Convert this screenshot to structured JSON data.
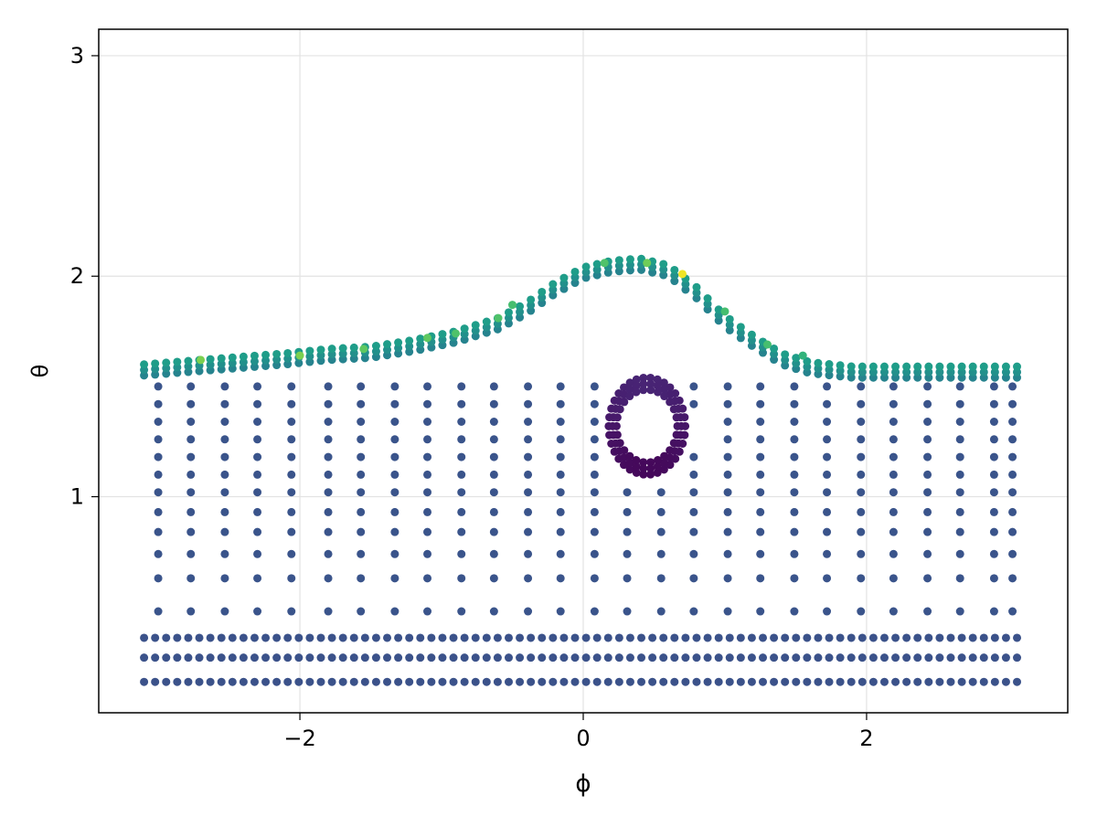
{
  "chart_data": {
    "type": "scatter",
    "title": "",
    "xlabel": "ϕ",
    "ylabel": "θ",
    "xlim": [
      -3.42,
      3.42
    ],
    "ylim": [
      0.02,
      3.12
    ],
    "xticks": [
      {
        "value": -2,
        "label": "−2"
      },
      {
        "value": 0,
        "label": "0"
      },
      {
        "value": 2,
        "label": "2"
      }
    ],
    "yticks": [
      {
        "value": 1,
        "label": "1"
      },
      {
        "value": 2,
        "label": "2"
      },
      {
        "value": 3,
        "label": "3"
      }
    ],
    "grid": true,
    "colormap": "viridis",
    "color_range": [
      0,
      1
    ],
    "sparse_columns_x": [
      -3.0,
      -2.77,
      -2.53,
      -2.3,
      -2.06,
      -1.8,
      -1.57,
      -1.33,
      -1.1,
      -0.86,
      -0.63,
      -0.39,
      -0.16,
      0.08,
      0.31,
      0.55,
      0.78,
      1.02,
      1.25,
      1.49,
      1.72,
      1.96,
      2.19,
      2.43,
      2.66,
      2.9,
      3.03
    ],
    "sparse_column_y": [
      0.48,
      0.63,
      0.74,
      0.84,
      0.93,
      1.02,
      1.1,
      1.18,
      1.26,
      1.34,
      1.42,
      1.5
    ],
    "sparse_column_color": 0.26,
    "dense_band_x": {
      "start": -3.1,
      "end": 3.1,
      "step": 0.078
    },
    "dense_band_rows": [
      {
        "y": 0.16,
        "color": 0.25
      },
      {
        "y": 0.27,
        "color": 0.25
      },
      {
        "y": 0.36,
        "color": 0.25
      }
    ],
    "surface_layers": [
      {
        "dy": 0.0,
        "color": 0.45
      },
      {
        "dy": 0.025,
        "color": 0.5
      },
      {
        "dy": 0.05,
        "color": 0.55
      }
    ],
    "surface_profile": {
      "x": [
        -3.1,
        -2.5,
        -2.1,
        -1.8,
        -1.5,
        -1.2,
        -0.9,
        -0.6,
        -0.4,
        -0.2,
        0.0,
        0.2,
        0.4,
        0.6,
        0.8,
        1.0,
        1.2,
        1.4,
        1.6,
        1.9,
        2.3,
        3.1
      ],
      "y": [
        1.55,
        1.58,
        1.6,
        1.62,
        1.63,
        1.66,
        1.7,
        1.76,
        1.83,
        1.92,
        1.99,
        2.02,
        2.03,
        2.0,
        1.9,
        1.77,
        1.68,
        1.6,
        1.56,
        1.54,
        1.54,
        1.54
      ]
    },
    "highlight_points": [
      {
        "x": -2.7,
        "y": 1.62,
        "color": 0.8
      },
      {
        "x": -2.0,
        "y": 1.64,
        "color": 0.8
      },
      {
        "x": -1.55,
        "y": 1.67,
        "color": 0.75
      },
      {
        "x": -1.1,
        "y": 1.72,
        "color": 0.75
      },
      {
        "x": -0.9,
        "y": 1.74,
        "color": 0.72
      },
      {
        "x": -0.6,
        "y": 1.81,
        "color": 0.72
      },
      {
        "x": -0.5,
        "y": 1.87,
        "color": 0.7
      },
      {
        "x": 0.15,
        "y": 2.06,
        "color": 0.72
      },
      {
        "x": 0.45,
        "y": 2.06,
        "color": 0.78
      },
      {
        "x": 0.7,
        "y": 2.01,
        "color": 0.98
      },
      {
        "x": 1.0,
        "y": 1.84,
        "color": 0.7
      },
      {
        "x": 1.3,
        "y": 1.69,
        "color": 0.7
      },
      {
        "x": 1.55,
        "y": 1.64,
        "color": 0.65
      }
    ],
    "loop": {
      "center": [
        0.45,
        1.32
      ],
      "radius_x": 0.27,
      "radius_y": 0.22,
      "thickness": 0.055,
      "colors": [
        0.02,
        0.1
      ]
    }
  }
}
